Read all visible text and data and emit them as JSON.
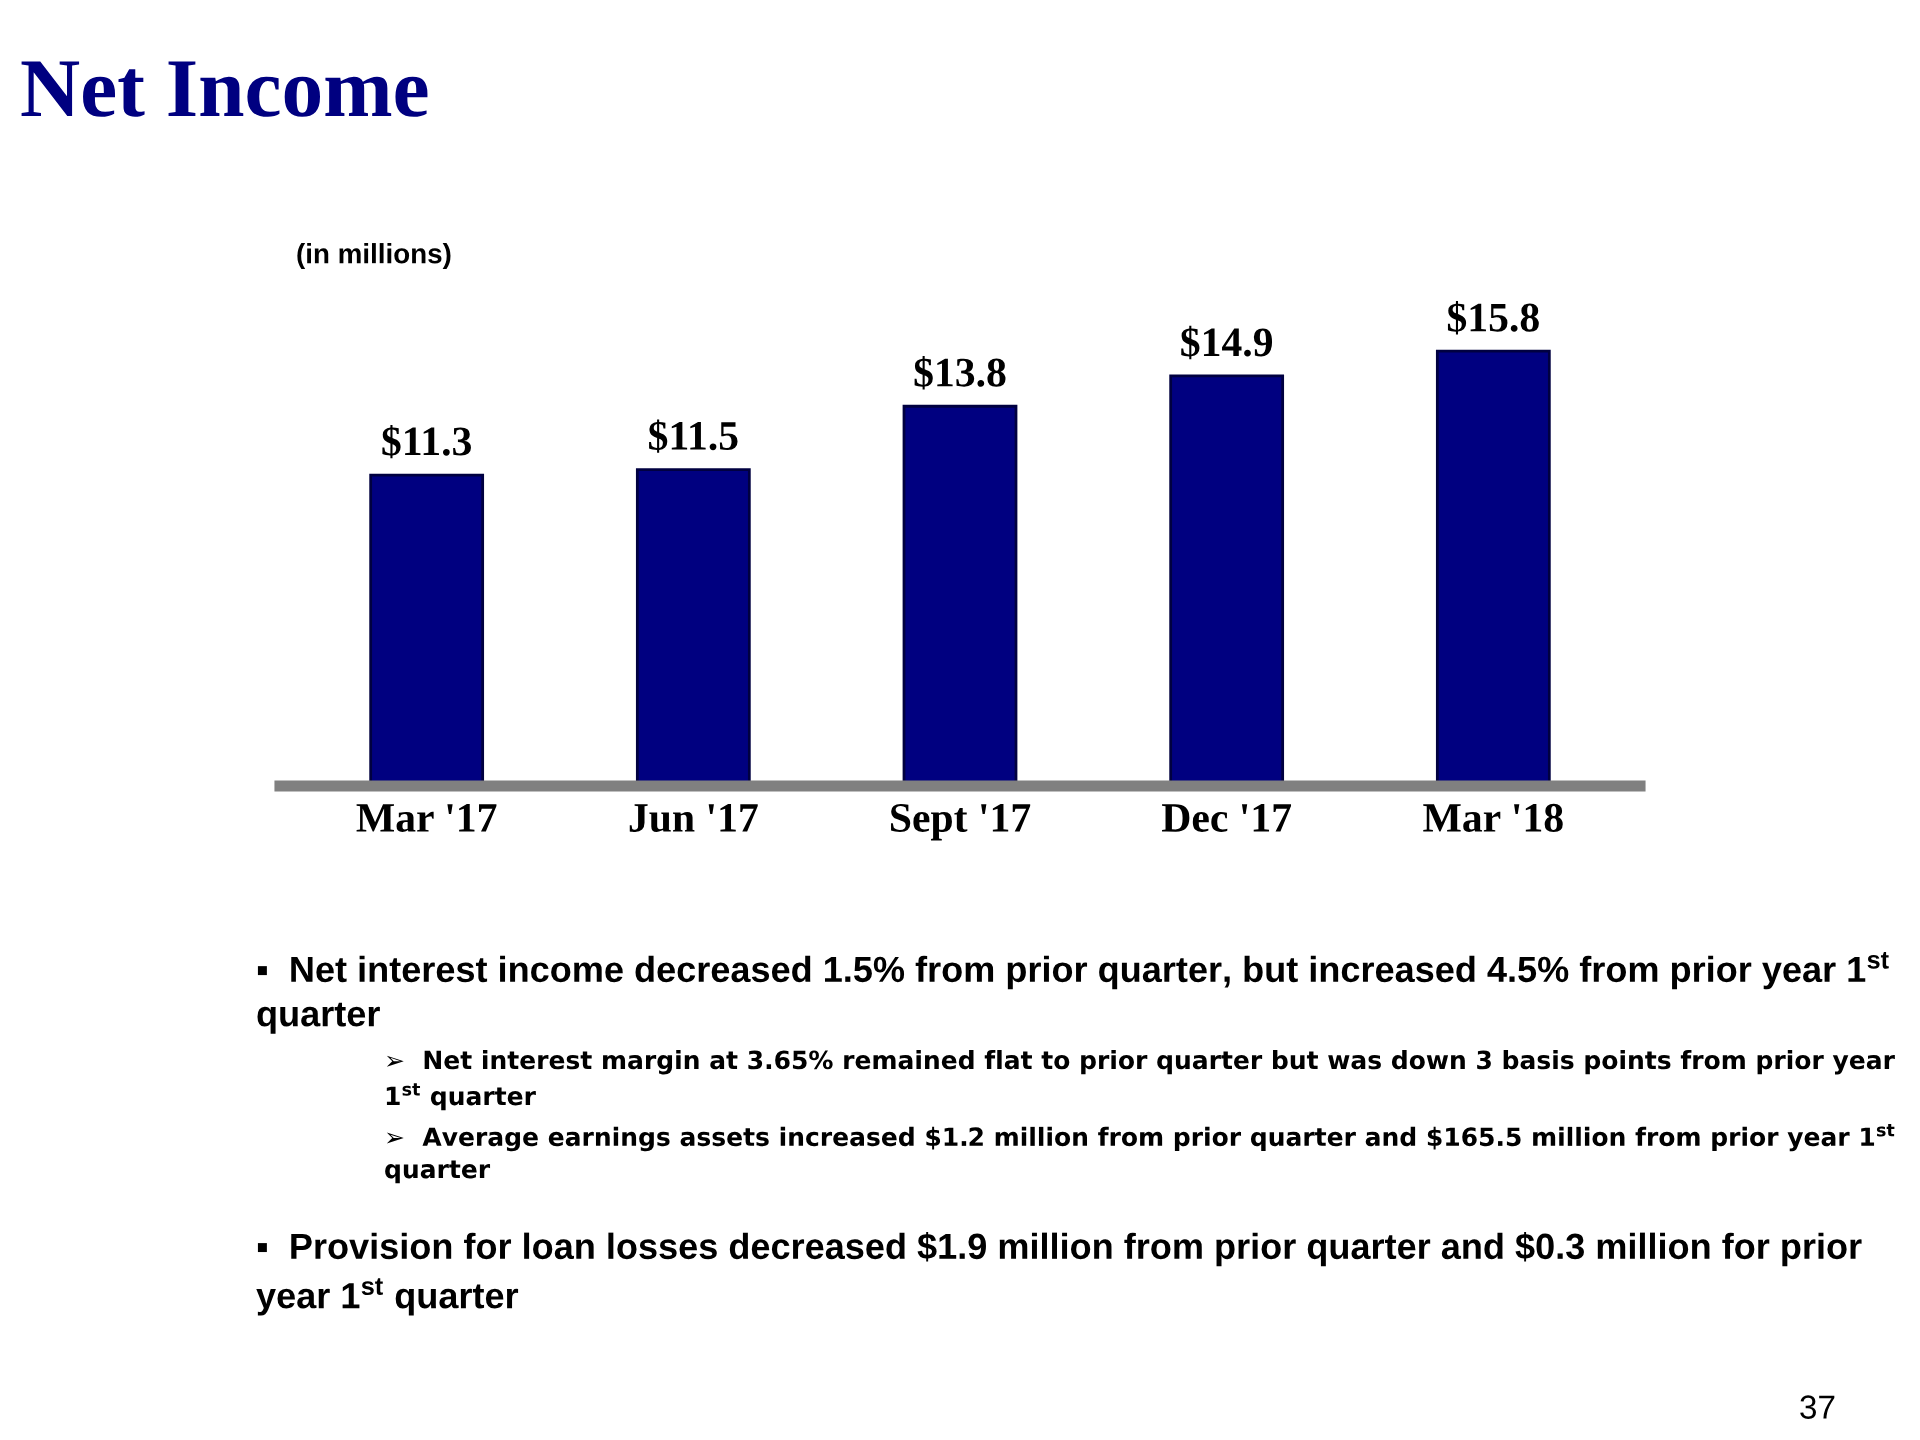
{
  "chart_data": {
    "type": "bar",
    "title": "Net Income",
    "subtitle": "(in millions)",
    "categories": [
      "Mar '17",
      "Jun '17",
      "Sept '17",
      "Dec '17",
      "Mar '18"
    ],
    "values": [
      11.3,
      11.5,
      13.8,
      14.9,
      15.8
    ],
    "value_labels": [
      "$11.3",
      "$11.5",
      "$13.8",
      "$14.9",
      "$15.8"
    ],
    "color": "#000080",
    "grid": false,
    "legend": false,
    "annotations": [
      "▪  Net interest income decreased 1.5% from prior quarter, but increased 4.5% from prior year 1$^{st}$ quarter",
      "➢  Net interest margin at 3.65% remained flat to prior quarter but was down 3 basis points from prior year 1$^{st}$ quarter",
      "➢  Average earnings assets increased $1.2 million from prior quarter and $165.5 million from prior year 1$^{st}$ quarter",
      "▪  Provision for loan losses decreased $1.9 million from prior quarter and $0.3 million for prior year 1$^{st}$ quarter",
      "37"
    ]
  }
}
